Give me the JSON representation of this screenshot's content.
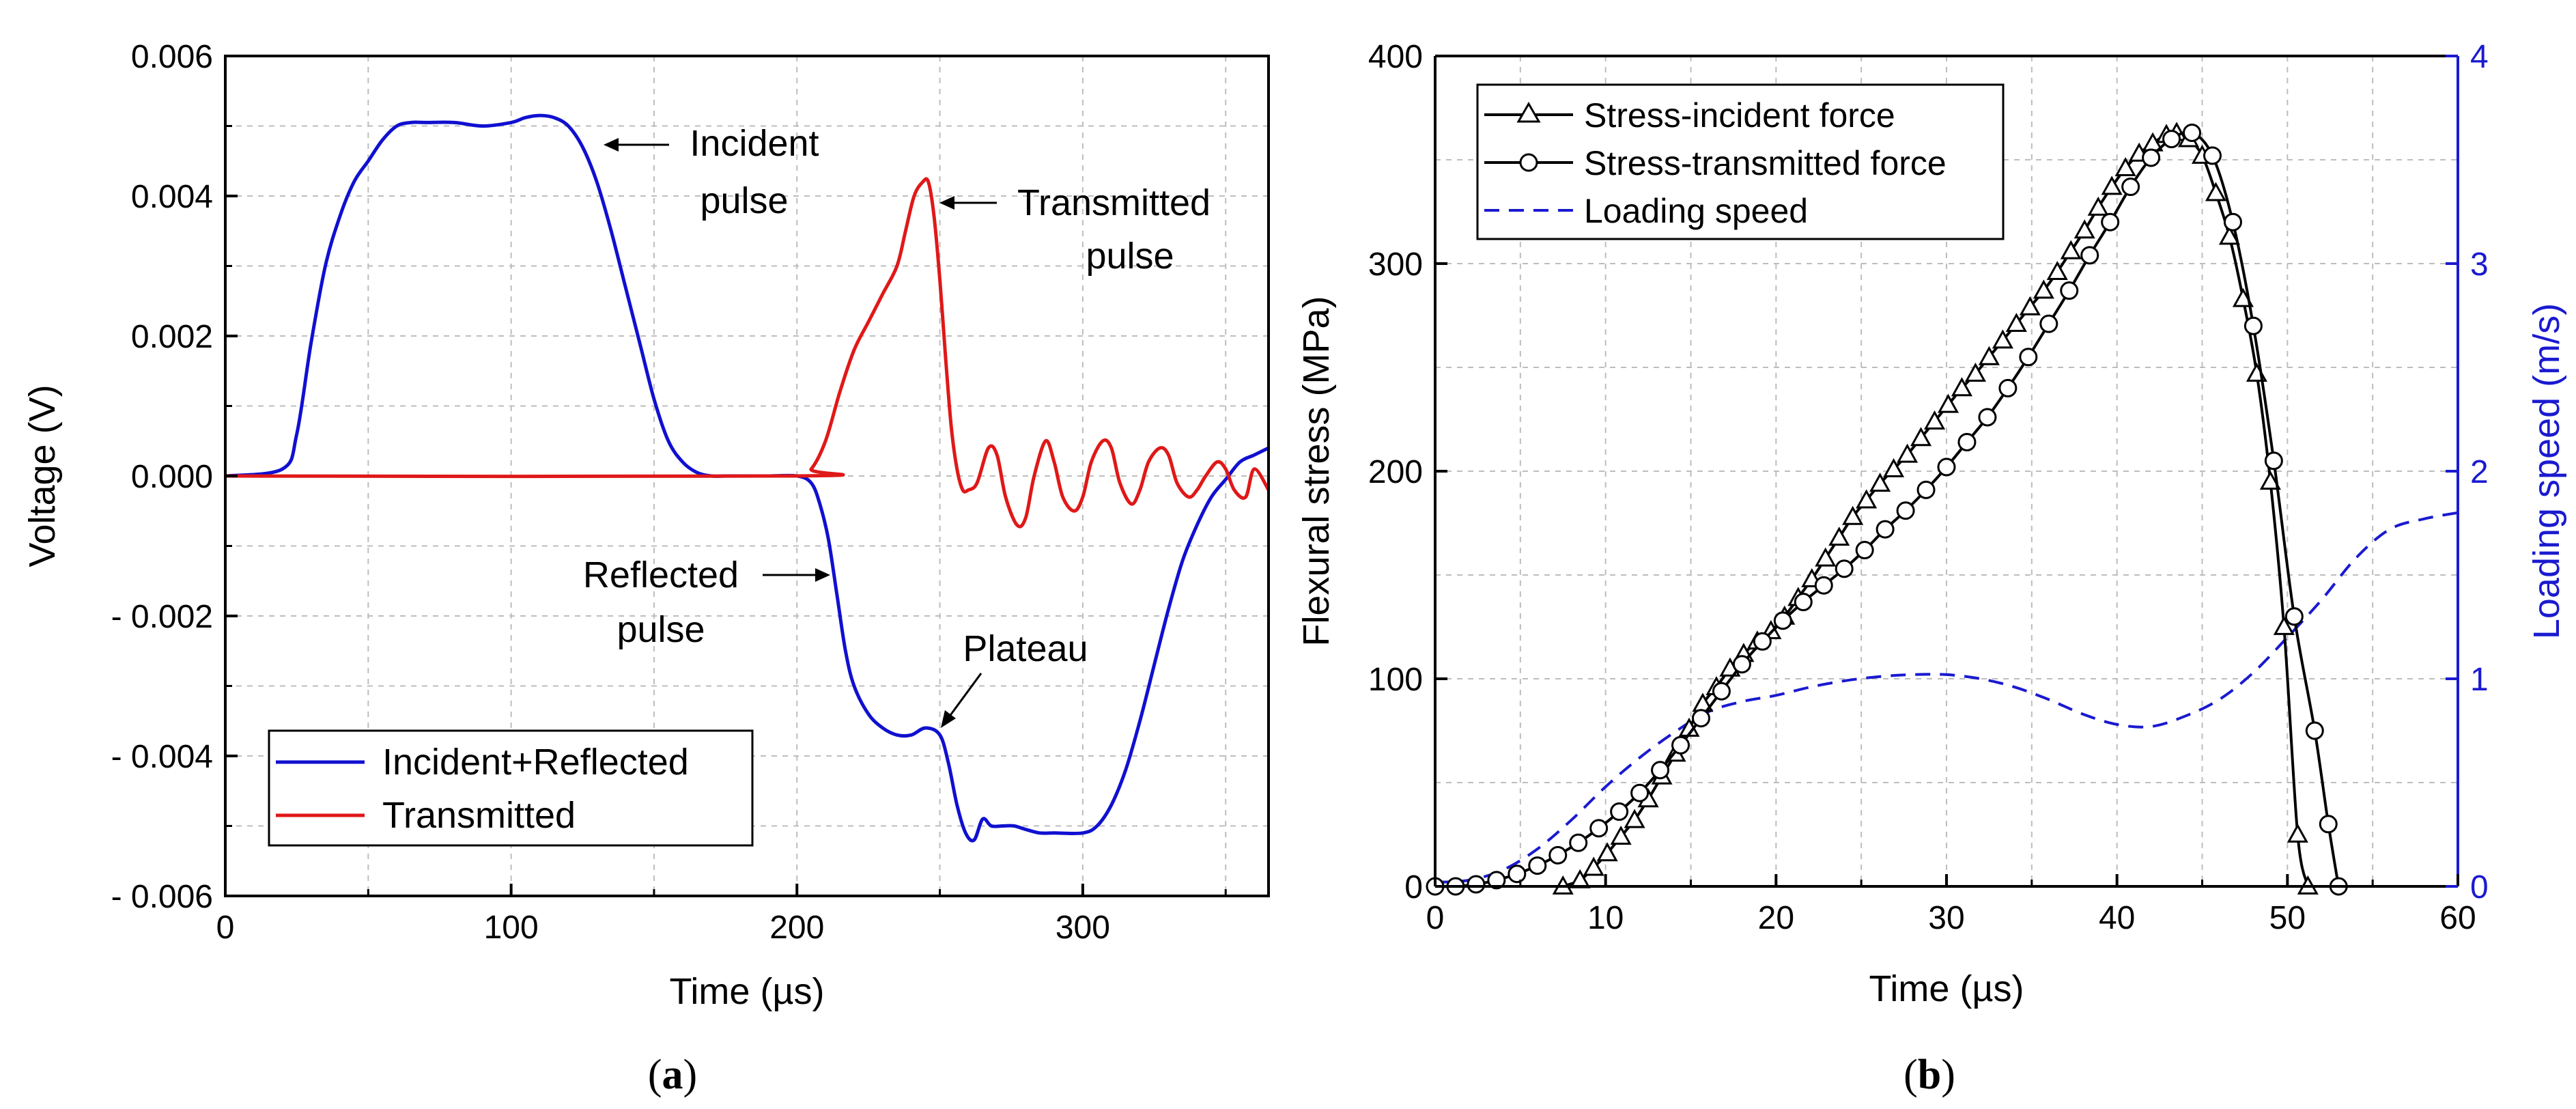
{
  "chart_data": [
    {
      "type": "line",
      "panel_label": "(a)",
      "xlabel": "Time (µs)",
      "ylabel": "Voltage (V)",
      "xlim": [
        0,
        365
      ],
      "ylim": [
        -0.006,
        0.006
      ],
      "grid": true,
      "x_ticks": [
        0,
        100,
        200,
        300
      ],
      "x_tick_labels": [
        "0",
        "100",
        "200",
        "300"
      ],
      "y_ticks": [
        0.006,
        0.004,
        0.002,
        0.0,
        -0.002,
        -0.004,
        -0.006
      ],
      "y_tick_labels": [
        "0.006",
        "0.004",
        "0.002",
        "0.000",
        "- 0.002",
        "- 0.004",
        "- 0.006"
      ],
      "legend_position": "bottom-left",
      "series": [
        {
          "name": "Incident+Reflected",
          "color": "#1010d0",
          "x": [
            0,
            20,
            25,
            30,
            35,
            40,
            45,
            50,
            55,
            60,
            65,
            70,
            80,
            90,
            100,
            105,
            110,
            115,
            120,
            125,
            130,
            135,
            140,
            145,
            150,
            155,
            160,
            165,
            170,
            175,
            180,
            190,
            200,
            205,
            208,
            211,
            214,
            217,
            220,
            225,
            230,
            235,
            240,
            245,
            250,
            253,
            256,
            259,
            262,
            265,
            268,
            272,
            276,
            280,
            285,
            290,
            300,
            305,
            310,
            315,
            320,
            325,
            330,
            335,
            340,
            345,
            350,
            355,
            360,
            365
          ],
          "values": [
            0,
            0.0001,
            0.0006,
            0.0019,
            0.003,
            0.0037,
            0.0042,
            0.0045,
            0.0048,
            0.005,
            0.00505,
            0.00505,
            0.00505,
            0.005,
            0.00505,
            0.00512,
            0.00515,
            0.00512,
            0.005,
            0.0047,
            0.0042,
            0.0035,
            0.0027,
            0.0019,
            0.0011,
            0.0005,
            0.0002,
            5e-05,
            0,
            0,
            0,
            0,
            0,
            -0.0001,
            -0.0004,
            -0.0009,
            -0.0017,
            -0.0025,
            -0.003,
            -0.0034,
            -0.0036,
            -0.0037,
            -0.0037,
            -0.0036,
            -0.0037,
            -0.0041,
            -0.0047,
            -0.0051,
            -0.0052,
            -0.0049,
            -0.005,
            -0.005,
            -0.005,
            -0.00505,
            -0.0051,
            -0.0051,
            -0.0051,
            -0.005,
            -0.0047,
            -0.0042,
            -0.0035,
            -0.0027,
            -0.0019,
            -0.0012,
            -0.0007,
            -0.0003,
            -5e-05,
            0.0002,
            0.0003,
            0.0004
          ]
        },
        {
          "name": "Transmitted",
          "color": "#e01818",
          "x": [
            0,
            200,
            205,
            210,
            215,
            220,
            225,
            230,
            235,
            238,
            241,
            244,
            246,
            248,
            250,
            252,
            254,
            256,
            258,
            260,
            263,
            267,
            270,
            273,
            277,
            280,
            283,
            287,
            290,
            293,
            297,
            300,
            303,
            307,
            310,
            313,
            317,
            320,
            323,
            327,
            330,
            333,
            337,
            340,
            343,
            347,
            350,
            353,
            357,
            360,
            365
          ],
          "values": [
            0,
            0,
            0.0001,
            0.0005,
            0.0012,
            0.0018,
            0.0022,
            0.0026,
            0.003,
            0.0035,
            0.004,
            0.0042,
            0.0042,
            0.0037,
            0.0028,
            0.0017,
            0.0007,
            0.0001,
            -0.0002,
            -0.0002,
            -0.0001,
            0.0004,
            0.0003,
            -0.0003,
            -0.0007,
            -0.0006,
            0.0,
            0.0005,
            0.0002,
            -0.0003,
            -0.0005,
            -0.0003,
            0.0002,
            0.0005,
            0.0004,
            -0.0001,
            -0.0004,
            -0.0002,
            0.0002,
            0.0004,
            0.0003,
            -0.0001,
            -0.0003,
            -0.0002,
            0.0,
            0.0002,
            0.0001,
            -0.0002,
            -0.0003,
            0.0001,
            -0.0002
          ]
        }
      ],
      "annotations": [
        {
          "lines": [
            "Incident",
            "pulse"
          ],
          "x": 128,
          "y": 0.0047
        },
        {
          "lines": [
            "Transmitted",
            "pulse"
          ],
          "x": 250,
          "y": 0.0039
        },
        {
          "lines": [
            "Reflected",
            "pulse"
          ],
          "x": 211,
          "y": -0.0015
        },
        {
          "lines": [
            "Plateau"
          ],
          "x": 250,
          "y": -0.0038
        }
      ]
    },
    {
      "type": "line",
      "panel_label": "(b)",
      "xlabel": "Time (µs)",
      "ylabel": "Flexural stress (MPa)",
      "y2label": "Loading speed (m/s)",
      "xlim": [
        0,
        60
      ],
      "ylim": [
        0,
        400
      ],
      "y2lim": [
        0,
        4
      ],
      "grid": true,
      "x_ticks": [
        0,
        10,
        20,
        30,
        40,
        50,
        60
      ],
      "x_tick_labels": [
        "0",
        "10",
        "20",
        "30",
        "40",
        "50",
        "60"
      ],
      "y_ticks": [
        0,
        100,
        200,
        300,
        400
      ],
      "y_tick_labels": [
        "0",
        "100",
        "200",
        "300",
        "400"
      ],
      "y2_ticks": [
        0,
        1,
        2,
        3,
        4
      ],
      "y2_tick_labels": [
        "0",
        "1",
        "2",
        "3",
        "4"
      ],
      "legend_position": "top-left",
      "series": [
        {
          "name": "Stress-incident force",
          "axis": "left",
          "marker": "triangle",
          "color": "#000000",
          "x": [
            7.5,
            8.5,
            9.3,
            10.1,
            10.9,
            11.7,
            12.5,
            13.3,
            14.1,
            14.9,
            15.7,
            16.5,
            17.3,
            18.1,
            18.9,
            19.7,
            20.5,
            21.3,
            22.1,
            22.9,
            23.7,
            24.5,
            25.3,
            26.1,
            26.9,
            27.7,
            28.5,
            29.3,
            30.1,
            30.9,
            31.7,
            32.5,
            33.3,
            34.1,
            34.9,
            35.7,
            36.5,
            37.3,
            38.1,
            38.9,
            39.7,
            40.5,
            41.3,
            42.1,
            42.9,
            43.5,
            44.2,
            45.0,
            45.8,
            46.6,
            47.4,
            48.2,
            49.0,
            49.8,
            50.6,
            51.2
          ],
          "values": [
            0,
            3,
            9,
            16,
            24,
            32,
            42,
            53,
            64,
            76,
            88,
            96,
            105,
            112,
            118,
            123,
            130,
            139,
            148,
            158,
            168,
            178,
            186,
            194,
            201,
            208,
            216,
            224,
            232,
            240,
            247,
            255,
            263,
            271,
            279,
            287,
            296,
            306,
            316,
            327,
            337,
            346,
            353,
            358,
            362,
            363,
            360,
            352,
            334,
            313,
            283,
            247,
            195,
            125,
            25,
            0
          ]
        },
        {
          "name": "Stress-transmitted force",
          "axis": "left",
          "marker": "circle",
          "color": "#000000",
          "x": [
            0,
            1.2,
            2.4,
            3.6,
            4.8,
            6.0,
            7.2,
            8.4,
            9.6,
            10.8,
            12.0,
            13.2,
            14.4,
            15.6,
            16.8,
            18.0,
            19.2,
            20.4,
            21.6,
            22.8,
            24.0,
            25.2,
            26.4,
            27.6,
            28.8,
            30.0,
            31.2,
            32.4,
            33.6,
            34.8,
            36.0,
            37.2,
            38.4,
            39.6,
            40.8,
            42.0,
            43.2,
            44.4,
            45.6,
            46.8,
            48.0,
            49.2,
            50.4,
            51.6,
            52.4,
            53.0
          ],
          "values": [
            0,
            0,
            1,
            3,
            6,
            10,
            15,
            21,
            28,
            36,
            45,
            56,
            68,
            81,
            94,
            107,
            118,
            128,
            137,
            145,
            153,
            162,
            172,
            181,
            191,
            202,
            214,
            226,
            240,
            255,
            271,
            287,
            304,
            320,
            337,
            351,
            360,
            363,
            352,
            320,
            270,
            205,
            130,
            75,
            30,
            0
          ]
        },
        {
          "name": "Loading speed",
          "axis": "right",
          "dashed": true,
          "color": "#1a1ad0",
          "x": [
            0,
            2,
            4,
            6,
            8,
            10,
            12,
            14,
            16,
            18,
            20,
            22,
            24,
            26,
            28,
            30,
            32,
            34,
            36,
            38,
            40,
            42,
            44,
            46,
            48,
            50,
            52,
            54,
            56,
            58,
            60
          ],
          "values": [
            0.02,
            0.03,
            0.08,
            0.18,
            0.32,
            0.48,
            0.62,
            0.74,
            0.84,
            0.89,
            0.92,
            0.96,
            0.99,
            1.01,
            1.02,
            1.02,
            1.0,
            0.96,
            0.9,
            0.83,
            0.78,
            0.77,
            0.82,
            0.9,
            1.03,
            1.2,
            1.38,
            1.58,
            1.72,
            1.77,
            1.8
          ]
        }
      ]
    }
  ]
}
